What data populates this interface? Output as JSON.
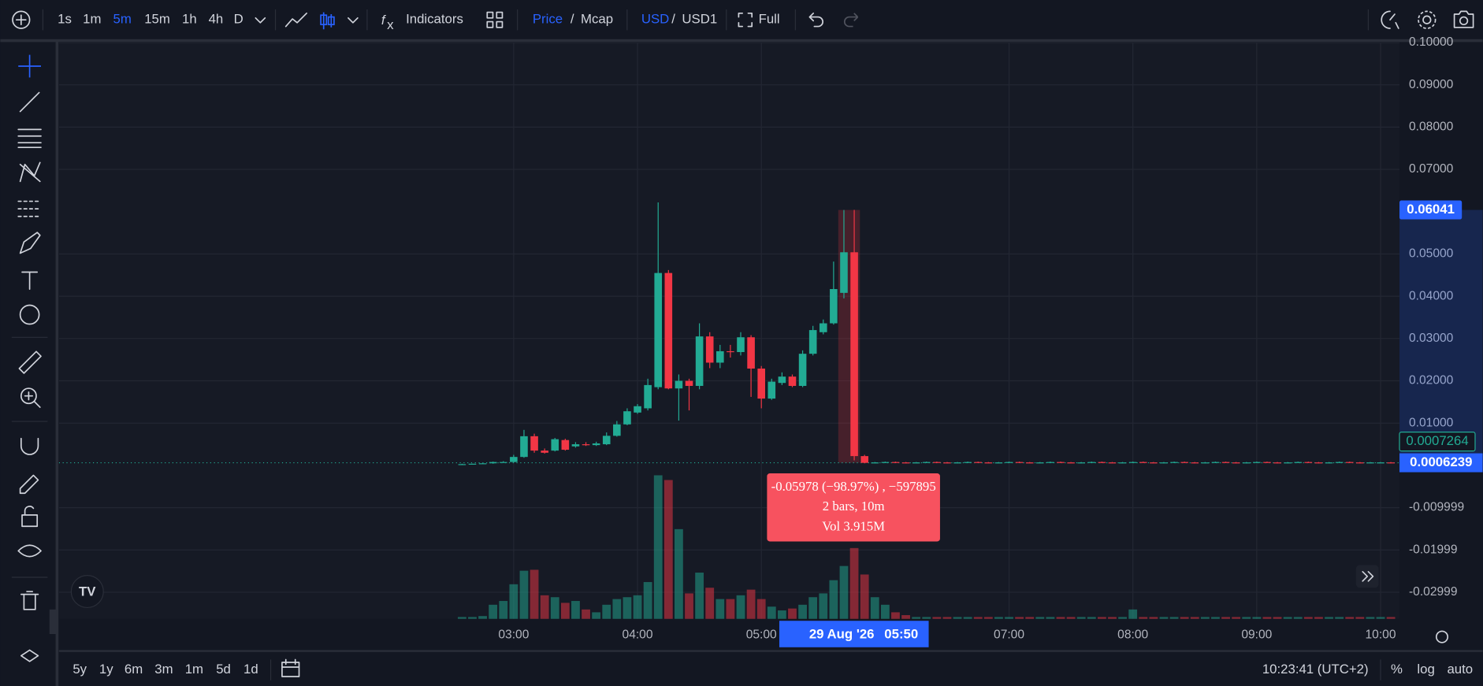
{
  "top_toolbar": {
    "intervals": [
      "1s",
      "1m",
      "5m",
      "15m",
      "1h",
      "4h",
      "D"
    ],
    "indicators": "Indicators",
    "price": "Price",
    "separator": "/",
    "mcap": "Mcap",
    "currency": "USD",
    "quote": "USD1",
    "full": "Full"
  },
  "chart_data": {
    "type": "candlestick",
    "x": [
      "02:35",
      "02:40",
      "02:45",
      "02:50",
      "02:55",
      "03:00",
      "03:05",
      "03:10",
      "03:15",
      "03:20",
      "03:25",
      "03:30",
      "03:35",
      "03:40",
      "03:45",
      "03:50",
      "03:55",
      "04:00",
      "04:05",
      "04:10",
      "04:15",
      "04:20",
      "04:25",
      "04:30",
      "04:35",
      "04:40",
      "04:45",
      "04:50",
      "04:55",
      "05:00",
      "05:05",
      "05:10",
      "05:15",
      "05:20",
      "05:25",
      "05:30",
      "05:35",
      "05:40",
      "05:45",
      "05:50",
      "05:55",
      "06:00",
      "06:05",
      "06:10",
      "06:15",
      "06:20",
      "06:25",
      "06:30",
      "06:35",
      "06:40",
      "06:45",
      "06:50",
      "06:55",
      "07:00",
      "07:05",
      "07:10",
      "07:15",
      "07:20",
      "07:25",
      "07:30",
      "07:35",
      "07:40",
      "07:45",
      "07:50",
      "07:55",
      "08:00",
      "08:05",
      "08:10",
      "08:15",
      "08:20",
      "08:25",
      "08:30",
      "08:35",
      "08:40",
      "08:45",
      "08:50",
      "08:55",
      "09:00",
      "09:05",
      "09:10",
      "09:15",
      "09:20",
      "09:25",
      "09:30",
      "09:35",
      "09:40",
      "09:45",
      "09:50",
      "09:55",
      "10:00",
      "10:05"
    ],
    "open": [
      0.0003,
      0.0003,
      0.0004,
      0.0005,
      0.0008,
      0.0008,
      0.002,
      0.0069,
      0.0035,
      0.0035,
      0.006,
      0.0045,
      0.005,
      0.0048,
      0.005,
      0.007,
      0.0097,
      0.0125,
      0.0135,
      0.0185,
      0.0455,
      0.0182,
      0.02,
      0.0188,
      0.0305,
      0.0243,
      0.027,
      0.0268,
      0.0303,
      0.0229,
      0.0158,
      0.0195,
      0.021,
      0.0188,
      0.0264,
      0.0315,
      0.0336,
      0.0408,
      0.0504,
      0.0022,
      0.0006,
      0.0007,
      0.0008,
      0.0007,
      0.0006,
      0.0007,
      0.0008,
      0.0007,
      0.0006,
      0.0007,
      0.0008,
      0.0007,
      0.0006,
      0.0007,
      0.0008,
      0.0007,
      0.0006,
      0.0007,
      0.0008,
      0.0007,
      0.0006,
      0.0007,
      0.0008,
      0.0007,
      0.0006,
      0.0007,
      0.0008,
      0.0007,
      0.0006,
      0.0007,
      0.0008,
      0.0007,
      0.0006,
      0.0007,
      0.0008,
      0.0007,
      0.0006,
      0.0007,
      0.0008,
      0.0007,
      0.0006,
      0.0007,
      0.0008,
      0.0007,
      0.0006,
      0.0007,
      0.0008,
      0.0007,
      0.0006,
      0.0007,
      0.0007
    ],
    "close": [
      0.0003,
      0.0004,
      0.0005,
      0.0008,
      0.0008,
      0.002,
      0.0069,
      0.0035,
      0.003,
      0.0062,
      0.0037,
      0.005,
      0.0048,
      0.0052,
      0.007,
      0.0097,
      0.0128,
      0.014,
      0.019,
      0.0455,
      0.0182,
      0.02,
      0.0188,
      0.0305,
      0.0243,
      0.027,
      0.0268,
      0.0303,
      0.0229,
      0.0158,
      0.0198,
      0.021,
      0.0188,
      0.0264,
      0.032,
      0.0336,
      0.0417,
      0.0504,
      0.0022,
      0.0006,
      0.0007,
      0.0008,
      0.0007,
      0.0006,
      0.0007,
      0.0008,
      0.0007,
      0.0006,
      0.0007,
      0.0008,
      0.0007,
      0.0006,
      0.0007,
      0.0008,
      0.0007,
      0.0006,
      0.0007,
      0.0008,
      0.0007,
      0.0006,
      0.0007,
      0.0008,
      0.0007,
      0.0006,
      0.0007,
      0.0008,
      0.0007,
      0.0006,
      0.0007,
      0.0008,
      0.0007,
      0.0006,
      0.0007,
      0.0008,
      0.0007,
      0.0006,
      0.0007,
      0.0008,
      0.0007,
      0.0006,
      0.0007,
      0.0008,
      0.0007,
      0.0006,
      0.0007,
      0.0008,
      0.0007,
      0.0006,
      0.0007,
      0.0007,
      0.0006
    ],
    "high": [
      0.0004,
      0.0004,
      0.0005,
      0.0009,
      0.001,
      0.0025,
      0.0084,
      0.0075,
      0.004,
      0.0065,
      0.0063,
      0.0055,
      0.0055,
      0.0056,
      0.0078,
      0.0105,
      0.0135,
      0.0145,
      0.0205,
      0.0622,
      0.0462,
      0.0215,
      0.0205,
      0.0336,
      0.0315,
      0.0285,
      0.0285,
      0.0315,
      0.0308,
      0.0235,
      0.0205,
      0.022,
      0.0215,
      0.0272,
      0.033,
      0.0345,
      0.0482,
      0.0604,
      0.06041,
      0.0025,
      0.0008,
      0.0009,
      0.0009,
      0.0008,
      0.0008,
      0.0009,
      0.0009,
      0.0008,
      0.0008,
      0.0009,
      0.0009,
      0.0008,
      0.0008,
      0.0009,
      0.0009,
      0.0008,
      0.0008,
      0.0009,
      0.0009,
      0.0008,
      0.0008,
      0.0009,
      0.0009,
      0.0008,
      0.0008,
      0.0009,
      0.0009,
      0.0008,
      0.0008,
      0.0009,
      0.0009,
      0.0008,
      0.0008,
      0.0009,
      0.0009,
      0.0008,
      0.0008,
      0.0009,
      0.0009,
      0.0008,
      0.0008,
      0.0009,
      0.0009,
      0.0008,
      0.0008,
      0.0009,
      0.0009,
      0.0008,
      0.0008,
      0.0008,
      0.0008
    ],
    "low": [
      0.0002,
      0.0003,
      0.0004,
      0.0004,
      0.0007,
      0.0007,
      0.0018,
      0.003,
      0.0028,
      0.0033,
      0.0035,
      0.0042,
      0.0046,
      0.0046,
      0.0048,
      0.0068,
      0.0095,
      0.0122,
      0.013,
      0.018,
      0.018,
      0.0106,
      0.013,
      0.018,
      0.023,
      0.023,
      0.0255,
      0.026,
      0.0162,
      0.0135,
      0.0155,
      0.019,
      0.0185,
      0.0185,
      0.026,
      0.031,
      0.0333,
      0.0395,
      0.0012,
      0.0005,
      0.0005,
      0.0006,
      0.0006,
      0.0005,
      0.0005,
      0.0006,
      0.0006,
      0.0005,
      0.0005,
      0.0006,
      0.0006,
      0.0005,
      0.0005,
      0.0006,
      0.0006,
      0.0005,
      0.0005,
      0.0006,
      0.0006,
      0.0005,
      0.0005,
      0.0006,
      0.0006,
      0.0005,
      0.0005,
      0.0006,
      0.0006,
      0.0005,
      0.0005,
      0.0006,
      0.0006,
      0.0005,
      0.0005,
      0.0006,
      0.0006,
      0.0005,
      0.0005,
      0.0006,
      0.0006,
      0.0005,
      0.0005,
      0.0006,
      0.0006,
      0.0005,
      0.0005,
      0.0006,
      0.0006,
      0.0005,
      0.0005,
      0.0006,
      0.0005
    ],
    "volume": [
      0.06,
      0.06,
      0.09,
      0.45,
      0.57,
      1.1,
      1.53,
      1.56,
      0.75,
      0.69,
      0.51,
      0.57,
      0.3,
      0.21,
      0.45,
      0.63,
      0.69,
      0.75,
      1.17,
      4.56,
      4.41,
      2.85,
      0.81,
      1.47,
      0.99,
      0.63,
      0.63,
      0.75,
      0.93,
      0.63,
      0.39,
      0.27,
      0.33,
      0.45,
      0.69,
      0.81,
      1.23,
      1.68,
      2.25,
      1.41,
      0.69,
      0.45,
      0.21,
      0.12,
      0.06,
      0.06,
      0.06,
      0.06,
      0.06,
      0.06,
      0.06,
      0.06,
      0.06,
      0.06,
      0.06,
      0.06,
      0.06,
      0.06,
      0.06,
      0.06,
      0.06,
      0.06,
      0.06,
      0.06,
      0.06,
      0.3,
      0.06,
      0.06,
      0.06,
      0.06,
      0.06,
      0.06,
      0.06,
      0.06,
      0.06,
      0.06,
      0.06,
      0.06,
      0.06,
      0.06,
      0.06,
      0.06,
      0.06,
      0.06,
      0.06,
      0.06,
      0.06,
      0.06,
      0.06,
      0.06,
      0.06
    ],
    "up_color": "#22ab94",
    "down_color": "#f23645",
    "ylim": [
      -0.0363,
      0.1
    ],
    "yticks": [
      {
        "value": 0.1,
        "label": "0.10000"
      },
      {
        "value": 0.09,
        "label": "0.09000"
      },
      {
        "value": 0.08,
        "label": "0.08000"
      },
      {
        "value": 0.07,
        "label": "0.07000"
      },
      {
        "value": 0.05,
        "label": "0.05000"
      },
      {
        "value": 0.04,
        "label": "0.04000"
      },
      {
        "value": 0.03,
        "label": "0.03000"
      },
      {
        "value": 0.02,
        "label": "0.02000"
      },
      {
        "value": 0.01,
        "label": "0.01000"
      },
      -0.009999,
      -0.01999,
      -0.02999
    ],
    "xticks": [
      "03:00",
      "04:00",
      "05:00",
      "07:00",
      "08:00",
      "09:00",
      "10:00"
    ],
    "high_price": 0.06041,
    "mark_price": 0.0007264,
    "last_price": 0.0006239,
    "crosshair": {
      "date": "29 Aug '26",
      "time": "05:50"
    },
    "measure": {
      "change": "-0.05978 (−98.97%) , −597895",
      "span": "2 bars, 10m",
      "volume": "Vol 3.915M"
    },
    "grid": true
  },
  "bottom_toolbar": {
    "ranges": [
      "5y",
      "1y",
      "6m",
      "3m",
      "1m",
      "5d",
      "1d"
    ],
    "clock": "10:23:41 (UTC+2)",
    "percent": "%",
    "log": "log",
    "auto": "auto"
  }
}
